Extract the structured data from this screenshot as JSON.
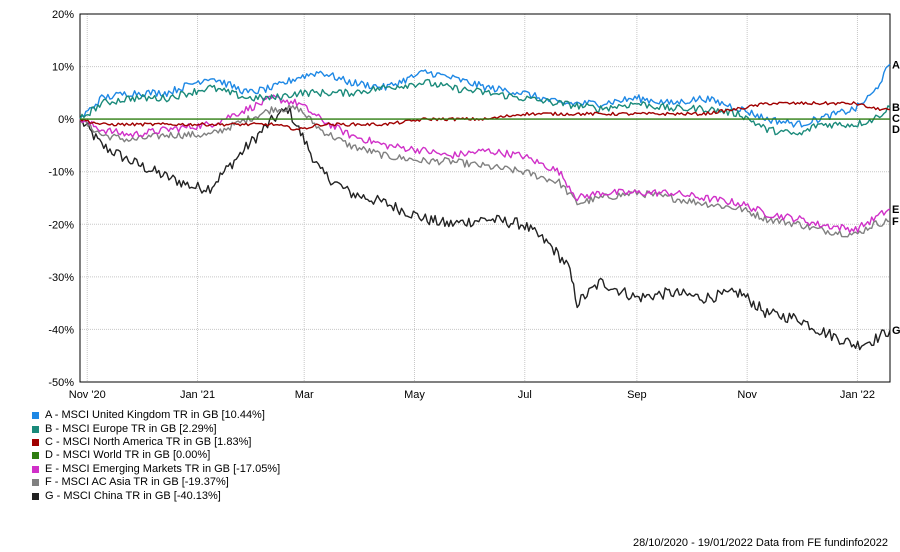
{
  "chart_data": {
    "type": "line",
    "y_unit": "%",
    "ylim": [
      -50,
      20
    ],
    "y_ticks": [
      "20%",
      "10%",
      "0%",
      "-10%",
      "-20%",
      "-30%",
      "-40%",
      "-50%"
    ],
    "y_tick_values": [
      20,
      10,
      0,
      -10,
      -20,
      -30,
      -40,
      -50
    ],
    "xlim": [
      "2020-10-28",
      "2022-01-19"
    ],
    "x_ticks": [
      {
        "label": "Nov '20",
        "date": "2020-11-01"
      },
      {
        "label": "Jan '21",
        "date": "2021-01-01"
      },
      {
        "label": "Mar",
        "date": "2021-03-01"
      },
      {
        "label": "May",
        "date": "2021-05-01"
      },
      {
        "label": "Jul",
        "date": "2021-07-01"
      },
      {
        "label": "Sep",
        "date": "2021-09-01"
      },
      {
        "label": "Nov",
        "date": "2021-11-01"
      },
      {
        "label": "Jan '22",
        "date": "2022-01-01"
      }
    ],
    "grid": true,
    "legend_position": "bottom-left",
    "series": [
      {
        "letter": "A",
        "name": "A - MSCI United Kingdom TR in GB [10.44%]",
        "color": "#1e88e5",
        "points": [
          [
            "2020-10-28",
            0
          ],
          [
            "2020-11-09",
            4
          ],
          [
            "2020-11-25",
            5
          ],
          [
            "2020-12-15",
            5
          ],
          [
            "2021-01-08",
            8
          ],
          [
            "2021-01-29",
            5
          ],
          [
            "2021-02-12",
            6
          ],
          [
            "2021-02-26",
            8
          ],
          [
            "2021-03-10",
            9
          ],
          [
            "2021-03-26",
            7
          ],
          [
            "2021-04-15",
            6
          ],
          [
            "2021-05-07",
            9
          ],
          [
            "2021-05-20",
            8
          ],
          [
            "2021-06-10",
            6
          ],
          [
            "2021-06-30",
            5
          ],
          [
            "2021-07-20",
            3
          ],
          [
            "2021-08-12",
            3
          ],
          [
            "2021-09-01",
            4
          ],
          [
            "2021-09-20",
            3
          ],
          [
            "2021-10-08",
            4
          ],
          [
            "2021-10-28",
            2
          ],
          [
            "2021-11-12",
            0
          ],
          [
            "2021-11-30",
            -1
          ],
          [
            "2021-12-10",
            0
          ],
          [
            "2021-12-31",
            2
          ],
          [
            "2022-01-10",
            5
          ],
          [
            "2022-01-19",
            10.44
          ]
        ]
      },
      {
        "letter": "B",
        "name": "B - MSCI Europe TR in GB [2.29%]",
        "color": "#1a8a7a",
        "points": [
          [
            "2020-10-28",
            0
          ],
          [
            "2020-11-09",
            3
          ],
          [
            "2020-11-25",
            4
          ],
          [
            "2020-12-15",
            4
          ],
          [
            "2021-01-08",
            6
          ],
          [
            "2021-01-29",
            4
          ],
          [
            "2021-02-12",
            4
          ],
          [
            "2021-02-26",
            5
          ],
          [
            "2021-03-10",
            5
          ],
          [
            "2021-03-26",
            5
          ],
          [
            "2021-04-15",
            6
          ],
          [
            "2021-05-07",
            7
          ],
          [
            "2021-05-20",
            6
          ],
          [
            "2021-06-10",
            5
          ],
          [
            "2021-06-30",
            4
          ],
          [
            "2021-07-20",
            3
          ],
          [
            "2021-08-12",
            2
          ],
          [
            "2021-09-01",
            3
          ],
          [
            "2021-09-20",
            2
          ],
          [
            "2021-10-08",
            2
          ],
          [
            "2021-10-28",
            1
          ],
          [
            "2021-11-12",
            -2
          ],
          [
            "2021-11-30",
            -3
          ],
          [
            "2021-12-10",
            -1
          ],
          [
            "2021-12-31",
            -1
          ],
          [
            "2022-01-10",
            0
          ],
          [
            "2022-01-19",
            2.29
          ]
        ]
      },
      {
        "letter": "C",
        "name": "C - MSCI North America TR in GB [1.83%]",
        "color": "#a00000",
        "points": [
          [
            "2020-10-28",
            0
          ],
          [
            "2020-11-09",
            -1
          ],
          [
            "2020-11-25",
            -1
          ],
          [
            "2020-12-15",
            -1
          ],
          [
            "2021-01-08",
            -1
          ],
          [
            "2021-01-29",
            -1
          ],
          [
            "2021-02-12",
            -1
          ],
          [
            "2021-02-26",
            -2
          ],
          [
            "2021-03-10",
            -1
          ],
          [
            "2021-03-26",
            -1
          ],
          [
            "2021-04-15",
            -1
          ],
          [
            "2021-05-07",
            0
          ],
          [
            "2021-05-20",
            0
          ],
          [
            "2021-06-10",
            0
          ],
          [
            "2021-06-30",
            1
          ],
          [
            "2021-07-20",
            1
          ],
          [
            "2021-08-12",
            1
          ],
          [
            "2021-09-01",
            1
          ],
          [
            "2021-09-20",
            1
          ],
          [
            "2021-10-08",
            1
          ],
          [
            "2021-10-28",
            2
          ],
          [
            "2021-11-12",
            3
          ],
          [
            "2021-11-30",
            3
          ],
          [
            "2021-12-10",
            3
          ],
          [
            "2021-12-31",
            3
          ],
          [
            "2022-01-10",
            2
          ],
          [
            "2022-01-19",
            1.83
          ]
        ]
      },
      {
        "letter": "D",
        "name": "D - MSCI World TR in GB [0.00%]",
        "color": "#2e7d10",
        "points": [
          [
            "2020-10-28",
            0
          ],
          [
            "2022-01-19",
            0
          ]
        ]
      },
      {
        "letter": "E",
        "name": "E - MSCI Emerging Markets TR in GB [-17.05%]",
        "color": "#d030c8",
        "points": [
          [
            "2020-10-28",
            0
          ],
          [
            "2020-11-09",
            -2
          ],
          [
            "2020-11-25",
            -3
          ],
          [
            "2020-12-15",
            -2
          ],
          [
            "2021-01-08",
            -1
          ],
          [
            "2021-01-29",
            2
          ],
          [
            "2021-02-12",
            4
          ],
          [
            "2021-02-26",
            3
          ],
          [
            "2021-03-10",
            0
          ],
          [
            "2021-03-26",
            -3
          ],
          [
            "2021-04-15",
            -5
          ],
          [
            "2021-05-07",
            -6
          ],
          [
            "2021-05-20",
            -7
          ],
          [
            "2021-06-10",
            -6
          ],
          [
            "2021-06-30",
            -7
          ],
          [
            "2021-07-20",
            -10
          ],
          [
            "2021-07-30",
            -15
          ],
          [
            "2021-08-12",
            -14
          ],
          [
            "2021-09-01",
            -14
          ],
          [
            "2021-09-20",
            -14
          ],
          [
            "2021-10-08",
            -15
          ],
          [
            "2021-10-28",
            -16
          ],
          [
            "2021-11-12",
            -18
          ],
          [
            "2021-11-30",
            -19
          ],
          [
            "2021-12-10",
            -20
          ],
          [
            "2021-12-31",
            -21
          ],
          [
            "2022-01-10",
            -19
          ],
          [
            "2022-01-19",
            -17.05
          ]
        ]
      },
      {
        "letter": "F",
        "name": "F - MSCI AC Asia TR in GB [-19.37%]",
        "color": "#808080",
        "points": [
          [
            "2020-10-28",
            0
          ],
          [
            "2020-11-09",
            -3
          ],
          [
            "2020-11-25",
            -4
          ],
          [
            "2020-12-15",
            -3
          ],
          [
            "2021-01-08",
            -3
          ],
          [
            "2021-01-29",
            0
          ],
          [
            "2021-02-12",
            2
          ],
          [
            "2021-02-26",
            2
          ],
          [
            "2021-03-10",
            -2
          ],
          [
            "2021-03-26",
            -5
          ],
          [
            "2021-04-15",
            -7
          ],
          [
            "2021-05-07",
            -8
          ],
          [
            "2021-05-20",
            -8
          ],
          [
            "2021-06-10",
            -9
          ],
          [
            "2021-06-30",
            -10
          ],
          [
            "2021-07-20",
            -12
          ],
          [
            "2021-07-30",
            -16
          ],
          [
            "2021-08-12",
            -15
          ],
          [
            "2021-09-01",
            -14
          ],
          [
            "2021-09-20",
            -15
          ],
          [
            "2021-10-08",
            -16
          ],
          [
            "2021-10-28",
            -17
          ],
          [
            "2021-11-12",
            -19
          ],
          [
            "2021-11-30",
            -20
          ],
          [
            "2021-12-10",
            -21
          ],
          [
            "2021-12-31",
            -22
          ],
          [
            "2022-01-10",
            -20
          ],
          [
            "2022-01-19",
            -19.37
          ]
        ]
      },
      {
        "letter": "G",
        "name": "G - MSCI China TR in GB [-40.13%]",
        "color": "#222222",
        "points": [
          [
            "2020-10-28",
            0
          ],
          [
            "2020-11-09",
            -5
          ],
          [
            "2020-11-25",
            -8
          ],
          [
            "2020-12-15",
            -11
          ],
          [
            "2020-12-31",
            -13
          ],
          [
            "2021-01-08",
            -13
          ],
          [
            "2021-01-29",
            -5
          ],
          [
            "2021-02-12",
            0
          ],
          [
            "2021-02-20",
            2
          ],
          [
            "2021-02-26",
            -2
          ],
          [
            "2021-03-10",
            -10
          ],
          [
            "2021-03-26",
            -14
          ],
          [
            "2021-04-15",
            -16
          ],
          [
            "2021-05-07",
            -19
          ],
          [
            "2021-05-20",
            -20
          ],
          [
            "2021-06-10",
            -19
          ],
          [
            "2021-06-30",
            -20
          ],
          [
            "2021-07-15",
            -24
          ],
          [
            "2021-07-25",
            -28
          ],
          [
            "2021-07-30",
            -35
          ],
          [
            "2021-08-12",
            -31
          ],
          [
            "2021-09-01",
            -34
          ],
          [
            "2021-09-20",
            -33
          ],
          [
            "2021-10-08",
            -34
          ],
          [
            "2021-10-28",
            -33
          ],
          [
            "2021-11-12",
            -37
          ],
          [
            "2021-11-30",
            -38
          ],
          [
            "2021-12-10",
            -40
          ],
          [
            "2021-12-31",
            -43
          ],
          [
            "2022-01-10",
            -42
          ],
          [
            "2022-01-19",
            -40.13
          ]
        ]
      }
    ]
  },
  "footer_text": "28/10/2020 - 19/01/2022 Data from FE fundinfo2022"
}
